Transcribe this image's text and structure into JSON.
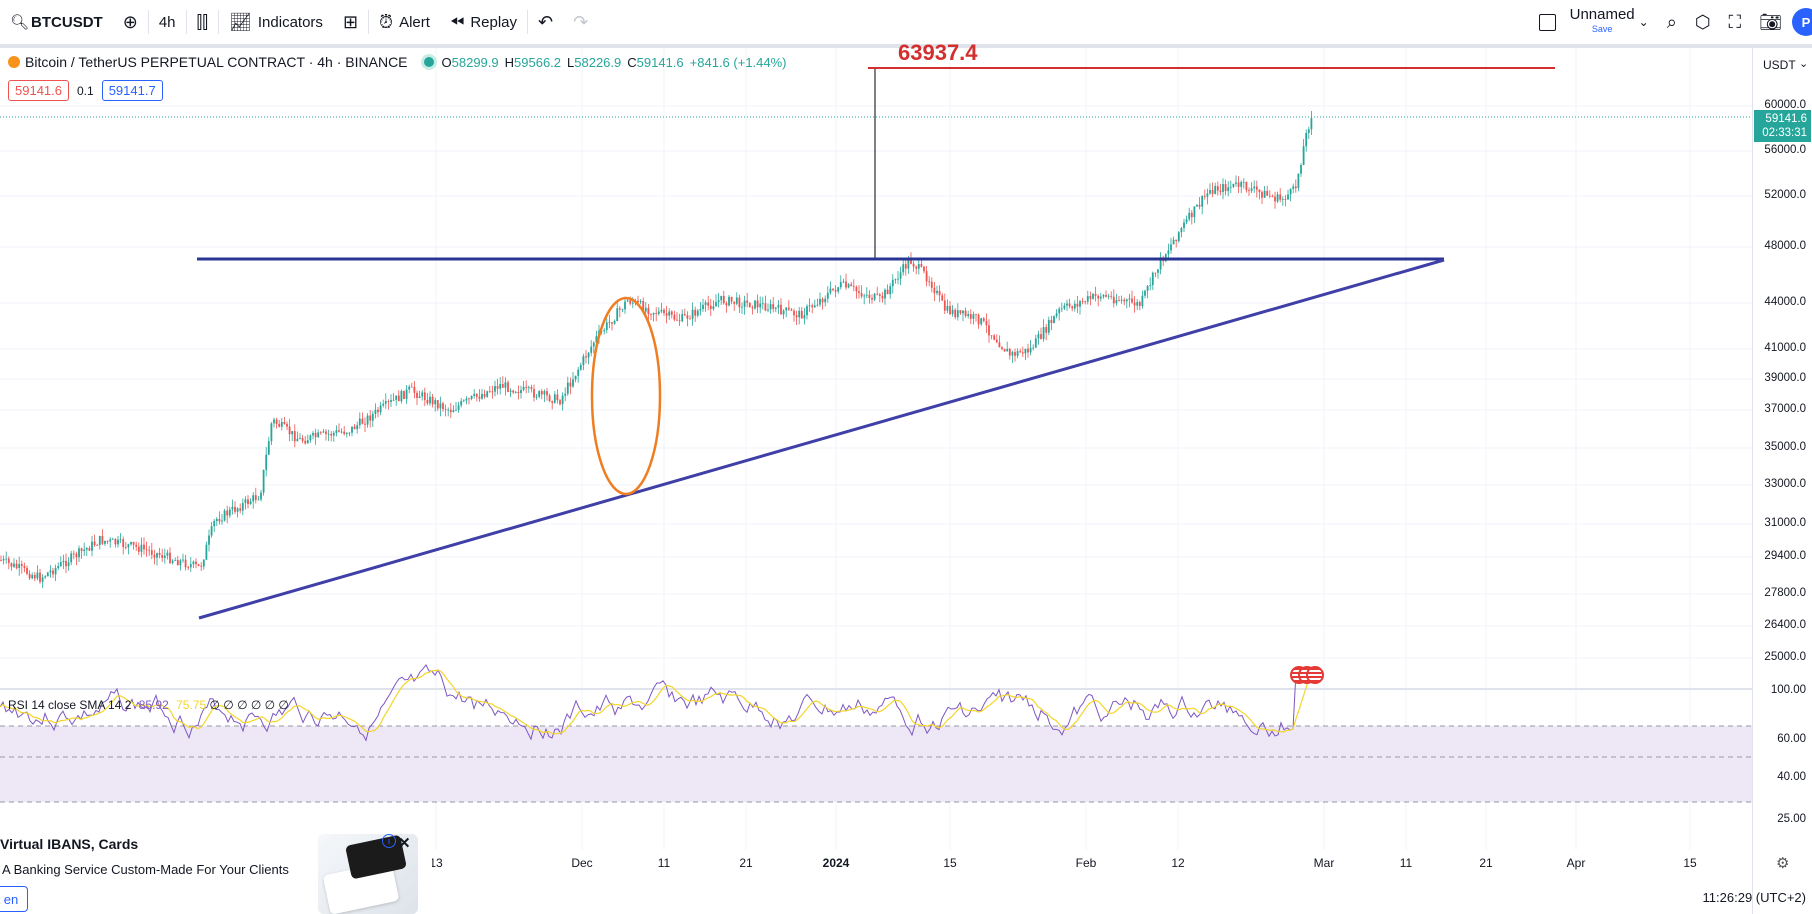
{
  "toolbar": {
    "symbol": "BTCUSDT",
    "interval": "4h",
    "indicators_label": "Indicators",
    "alert_label": "Alert",
    "replay_label": "Replay",
    "layout_name": "Unnamed",
    "layout_save": "Save",
    "user_initial": "P"
  },
  "legend": {
    "title": "Bitcoin / TetherUS PERPETUAL CONTRACT · 4h · BINANCE",
    "open_k": "O",
    "open": "58299.9",
    "high_k": "H",
    "high": "59566.2",
    "low_k": "L",
    "low": "58226.9",
    "close_k": "C",
    "close": "59141.6",
    "change": "+841.6 (+1.44%)",
    "sell_price": "59141.6",
    "spread": "0.1",
    "buy_price": "59141.7"
  },
  "price_scale": {
    "currency": "USDT",
    "ticks": [
      "60000.0",
      "56000.0",
      "52000.0",
      "48000.0",
      "44000.0",
      "41000.0",
      "39000.0",
      "37000.0",
      "35000.0",
      "33000.0",
      "31000.0",
      "29400.0",
      "27800.0",
      "26400.0",
      "25000.0"
    ],
    "last_price": "59141.6",
    "countdown": "02:33:31",
    "rsi_ticks": [
      "100.00",
      "60.00",
      "40.00",
      "25.00"
    ]
  },
  "drawing": {
    "target_price": "63937.4",
    "target_color": "#d32f2f",
    "resistance_color": "#283593",
    "support_color": "#3f3fa8",
    "ellipse_color": "#ef7d22"
  },
  "rsi": {
    "label": "RSI 14 close SMA 14 2",
    "value1": "85.92",
    "value2": "75.75",
    "nulls": "∅ ∅ ∅ ∅ ∅ ∅"
  },
  "time_axis": {
    "labels": [
      "13",
      "Dec",
      "11",
      "21",
      "2024",
      "15",
      "Feb",
      "12",
      "Mar",
      "11",
      "21",
      "Apr",
      "15"
    ],
    "clock": "11:26:29 (UTC+2)"
  },
  "ad": {
    "title": "Virtual IBANS, Cards",
    "text": "A Banking Service Custom-Made For Your Clients",
    "button": "en"
  },
  "colors": {
    "up": "#26a69a",
    "down": "#ef5350",
    "rsi_line": "#7e57c2",
    "rsi_sma": "#f3d52a",
    "rsi_band": "#ede7f6"
  }
}
